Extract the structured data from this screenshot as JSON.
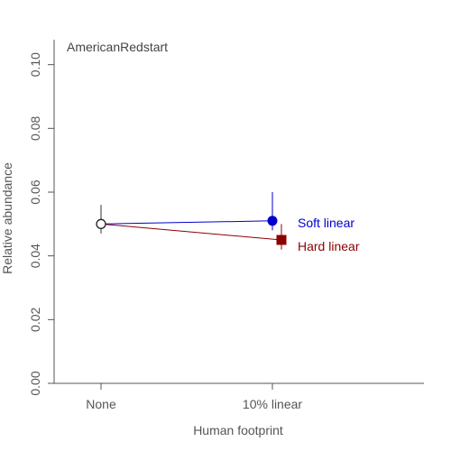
{
  "chart_data": {
    "type": "line",
    "title": "AmericanRedstart",
    "xlabel": "Human footprint",
    "ylabel": "Relative abundance",
    "categories": [
      "None",
      "10% linear"
    ],
    "y_ticks": [
      "0.00",
      "0.02",
      "0.04",
      "0.06",
      "0.08",
      "0.10"
    ],
    "ylim": [
      0,
      0.105
    ],
    "grid": false,
    "legend": "inline labels at right end of each series",
    "series": [
      {
        "name": "Soft linear",
        "color": "#0000cc",
        "marker": "circle",
        "points": [
          {
            "category": "None",
            "value": 0.05,
            "lower": 0.047,
            "upper": 0.056
          },
          {
            "category": "10% linear",
            "value": 0.051,
            "lower": 0.048,
            "upper": 0.06
          }
        ]
      },
      {
        "name": "Hard linear",
        "color": "#8b0000",
        "marker": "square",
        "points": [
          {
            "category": "None",
            "value": 0.05,
            "lower": 0.047,
            "upper": 0.056
          },
          {
            "category": "10% linear",
            "value": 0.045,
            "lower": 0.042,
            "upper": 0.05
          }
        ]
      }
    ]
  }
}
